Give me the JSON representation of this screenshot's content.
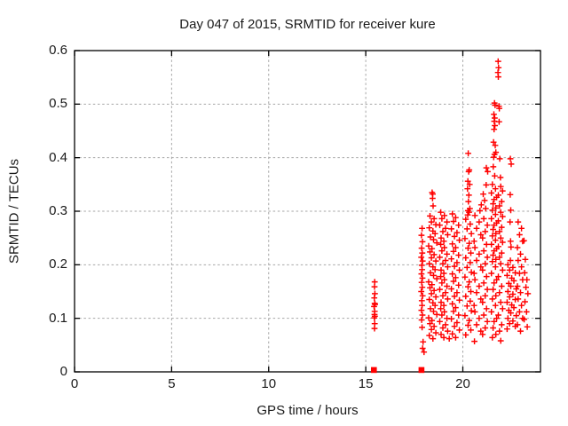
{
  "title": "Day 047 of 2015, SRMTID for receiver kure",
  "chart_data": {
    "type": "scatter",
    "title": "Day 047 of 2015, SRMTID for receiver kure",
    "xlabel": "GPS time / hours",
    "ylabel": "SRMTID / TECUs",
    "xlim": [
      0,
      24
    ],
    "ylim": [
      0,
      0.6
    ],
    "xticks": [
      0,
      5,
      10,
      15,
      20
    ],
    "yticks": [
      0,
      0.1,
      0.2,
      0.3,
      0.4,
      0.5,
      0.6
    ],
    "xtick_labels": [
      "0",
      "5",
      "10",
      "15",
      "20"
    ],
    "ytick_labels": [
      "0",
      "0.1",
      "0.2",
      "0.3",
      "0.4",
      "0.5",
      "0.6"
    ],
    "grid": true,
    "legend": "none",
    "marker": "plus",
    "marker_color": "#ff0000",
    "grid_color": "#a6a6a6",
    "background_color": "#ffffff",
    "zero_clusters_x": [
      15.42,
      17.87
    ],
    "points": [
      [
        15.46,
        0.168
      ],
      [
        15.45,
        0.159
      ],
      [
        15.47,
        0.146
      ],
      [
        15.44,
        0.138
      ],
      [
        15.46,
        0.128
      ],
      [
        15.48,
        0.126
      ],
      [
        15.43,
        0.122
      ],
      [
        15.46,
        0.113
      ],
      [
        15.45,
        0.107
      ],
      [
        15.47,
        0.104
      ],
      [
        15.44,
        0.101
      ],
      [
        15.46,
        0.09
      ],
      [
        15.45,
        0.081
      ],
      [
        17.9,
        0.268
      ],
      [
        17.87,
        0.255
      ],
      [
        17.92,
        0.243
      ],
      [
        17.88,
        0.231
      ],
      [
        17.91,
        0.222
      ],
      [
        17.86,
        0.214
      ],
      [
        17.93,
        0.207
      ],
      [
        17.89,
        0.199
      ],
      [
        17.9,
        0.191
      ],
      [
        17.87,
        0.183
      ],
      [
        17.92,
        0.175
      ],
      [
        17.88,
        0.167
      ],
      [
        17.91,
        0.158
      ],
      [
        17.86,
        0.15
      ],
      [
        17.93,
        0.142
      ],
      [
        17.89,
        0.133
      ],
      [
        17.9,
        0.124
      ],
      [
        17.87,
        0.115
      ],
      [
        17.92,
        0.106
      ],
      [
        17.88,
        0.097
      ],
      [
        17.9,
        0.083
      ],
      [
        17.95,
        0.056
      ],
      [
        17.93,
        0.044
      ],
      [
        18.0,
        0.037
      ],
      [
        18.42,
        0.335
      ],
      [
        18.45,
        0.332
      ],
      [
        18.44,
        0.324
      ],
      [
        18.47,
        0.31
      ],
      [
        18.31,
        0.291
      ],
      [
        18.52,
        0.286
      ],
      [
        18.38,
        0.28
      ],
      [
        18.61,
        0.275
      ],
      [
        18.27,
        0.269
      ],
      [
        18.46,
        0.263
      ],
      [
        18.57,
        0.258
      ],
      [
        18.33,
        0.252
      ],
      [
        18.49,
        0.247
      ],
      [
        18.66,
        0.241
      ],
      [
        18.24,
        0.235
      ],
      [
        18.41,
        0.23
      ],
      [
        18.31,
        0.224
      ],
      [
        18.52,
        0.219
      ],
      [
        18.38,
        0.213
      ],
      [
        18.61,
        0.207
      ],
      [
        18.27,
        0.202
      ],
      [
        18.46,
        0.196
      ],
      [
        18.57,
        0.191
      ],
      [
        18.33,
        0.185
      ],
      [
        18.49,
        0.18
      ],
      [
        18.66,
        0.174
      ],
      [
        18.24,
        0.168
      ],
      [
        18.41,
        0.163
      ],
      [
        18.31,
        0.157
      ],
      [
        18.52,
        0.152
      ],
      [
        18.38,
        0.146
      ],
      [
        18.61,
        0.14
      ],
      [
        18.27,
        0.135
      ],
      [
        18.46,
        0.129
      ],
      [
        18.57,
        0.124
      ],
      [
        18.33,
        0.118
      ],
      [
        18.49,
        0.113
      ],
      [
        18.66,
        0.107
      ],
      [
        18.24,
        0.101
      ],
      [
        18.41,
        0.096
      ],
      [
        18.31,
        0.09
      ],
      [
        18.52,
        0.085
      ],
      [
        18.38,
        0.079
      ],
      [
        18.61,
        0.073
      ],
      [
        18.27,
        0.068
      ],
      [
        18.46,
        0.062
      ],
      [
        18.86,
        0.298
      ],
      [
        19.05,
        0.292
      ],
      [
        18.92,
        0.286
      ],
      [
        19.18,
        0.28
      ],
      [
        18.81,
        0.274
      ],
      [
        19.11,
        0.268
      ],
      [
        18.97,
        0.262
      ],
      [
        19.22,
        0.256
      ],
      [
        18.88,
        0.25
      ],
      [
        19.02,
        0.244
      ],
      [
        18.86,
        0.238
      ],
      [
        19.05,
        0.232
      ],
      [
        18.92,
        0.226
      ],
      [
        19.18,
        0.22
      ],
      [
        18.81,
        0.214
      ],
      [
        19.11,
        0.208
      ],
      [
        18.97,
        0.202
      ],
      [
        19.22,
        0.196
      ],
      [
        18.88,
        0.19
      ],
      [
        19.02,
        0.184
      ],
      [
        18.86,
        0.178
      ],
      [
        19.05,
        0.172
      ],
      [
        18.92,
        0.166
      ],
      [
        19.18,
        0.16
      ],
      [
        18.81,
        0.154
      ],
      [
        19.11,
        0.148
      ],
      [
        18.97,
        0.142
      ],
      [
        19.22,
        0.136
      ],
      [
        18.88,
        0.13
      ],
      [
        19.02,
        0.124
      ],
      [
        18.86,
        0.118
      ],
      [
        19.05,
        0.112
      ],
      [
        18.92,
        0.106
      ],
      [
        19.18,
        0.1
      ],
      [
        18.81,
        0.094
      ],
      [
        19.11,
        0.088
      ],
      [
        18.97,
        0.082
      ],
      [
        19.22,
        0.076
      ],
      [
        18.88,
        0.07
      ],
      [
        19.02,
        0.064
      ],
      [
        19.46,
        0.295
      ],
      [
        19.63,
        0.288
      ],
      [
        19.52,
        0.281
      ],
      [
        19.78,
        0.274
      ],
      [
        19.41,
        0.267
      ],
      [
        19.7,
        0.26
      ],
      [
        19.57,
        0.253
      ],
      [
        19.82,
        0.246
      ],
      [
        19.46,
        0.239
      ],
      [
        19.63,
        0.232
      ],
      [
        19.52,
        0.225
      ],
      [
        19.78,
        0.218
      ],
      [
        19.41,
        0.211
      ],
      [
        19.7,
        0.204
      ],
      [
        19.57,
        0.197
      ],
      [
        19.82,
        0.19
      ],
      [
        19.46,
        0.183
      ],
      [
        19.63,
        0.176
      ],
      [
        19.52,
        0.169
      ],
      [
        19.78,
        0.162
      ],
      [
        19.41,
        0.155
      ],
      [
        19.7,
        0.148
      ],
      [
        19.57,
        0.141
      ],
      [
        19.82,
        0.134
      ],
      [
        19.46,
        0.127
      ],
      [
        19.63,
        0.12
      ],
      [
        19.52,
        0.113
      ],
      [
        19.78,
        0.106
      ],
      [
        19.41,
        0.099
      ],
      [
        19.7,
        0.092
      ],
      [
        19.57,
        0.085
      ],
      [
        19.82,
        0.078
      ],
      [
        19.46,
        0.071
      ],
      [
        19.63,
        0.064
      ],
      [
        19.3,
        0.062
      ],
      [
        20.28,
        0.408
      ],
      [
        20.33,
        0.377
      ],
      [
        20.3,
        0.374
      ],
      [
        20.26,
        0.356
      ],
      [
        20.35,
        0.35
      ],
      [
        20.24,
        0.342
      ],
      [
        20.31,
        0.33
      ],
      [
        20.29,
        0.318
      ],
      [
        20.36,
        0.305
      ],
      [
        20.27,
        0.301
      ],
      [
        20.32,
        0.298
      ],
      [
        20.25,
        0.293
      ],
      [
        20.15,
        0.285
      ],
      [
        20.38,
        0.276
      ],
      [
        20.22,
        0.267
      ],
      [
        20.44,
        0.258
      ],
      [
        20.11,
        0.249
      ],
      [
        20.33,
        0.24
      ],
      [
        20.27,
        0.231
      ],
      [
        20.41,
        0.222
      ],
      [
        20.15,
        0.213
      ],
      [
        20.38,
        0.204
      ],
      [
        20.22,
        0.195
      ],
      [
        20.44,
        0.186
      ],
      [
        20.11,
        0.177
      ],
      [
        20.33,
        0.168
      ],
      [
        20.27,
        0.159
      ],
      [
        20.41,
        0.15
      ],
      [
        20.15,
        0.141
      ],
      [
        20.38,
        0.132
      ],
      [
        20.22,
        0.123
      ],
      [
        20.44,
        0.114
      ],
      [
        20.11,
        0.105
      ],
      [
        20.33,
        0.096
      ],
      [
        20.27,
        0.087
      ],
      [
        20.41,
        0.078
      ],
      [
        20.15,
        0.069
      ],
      [
        20.6,
        0.057
      ],
      [
        21.2,
        0.349
      ],
      [
        21.21,
        0.381
      ],
      [
        21.28,
        0.374
      ],
      [
        21.05,
        0.332
      ],
      [
        21.12,
        0.32
      ],
      [
        20.95,
        0.312
      ],
      [
        21.18,
        0.305
      ],
      [
        20.88,
        0.301
      ],
      [
        20.62,
        0.292
      ],
      [
        21.08,
        0.286
      ],
      [
        20.84,
        0.28
      ],
      [
        21.26,
        0.274
      ],
      [
        20.71,
        0.268
      ],
      [
        21.15,
        0.262
      ],
      [
        20.93,
        0.256
      ],
      [
        21.02,
        0.25
      ],
      [
        20.58,
        0.244
      ],
      [
        21.22,
        0.238
      ],
      [
        20.62,
        0.232
      ],
      [
        21.08,
        0.226
      ],
      [
        20.84,
        0.22
      ],
      [
        21.26,
        0.214
      ],
      [
        20.71,
        0.208
      ],
      [
        21.15,
        0.202
      ],
      [
        20.93,
        0.196
      ],
      [
        21.02,
        0.19
      ],
      [
        20.58,
        0.184
      ],
      [
        21.22,
        0.178
      ],
      [
        20.62,
        0.172
      ],
      [
        21.08,
        0.166
      ],
      [
        20.84,
        0.16
      ],
      [
        21.26,
        0.154
      ],
      [
        20.71,
        0.148
      ],
      [
        21.15,
        0.142
      ],
      [
        20.93,
        0.136
      ],
      [
        21.02,
        0.13
      ],
      [
        20.58,
        0.124
      ],
      [
        21.22,
        0.118
      ],
      [
        20.62,
        0.112
      ],
      [
        21.08,
        0.106
      ],
      [
        20.84,
        0.1
      ],
      [
        21.26,
        0.094
      ],
      [
        20.71,
        0.088
      ],
      [
        21.15,
        0.082
      ],
      [
        20.93,
        0.076
      ],
      [
        21.02,
        0.07
      ],
      [
        21.82,
        0.58
      ],
      [
        21.84,
        0.568
      ],
      [
        21.81,
        0.559
      ],
      [
        21.83,
        0.551
      ],
      [
        21.63,
        0.502
      ],
      [
        21.66,
        0.498
      ],
      [
        21.86,
        0.496
      ],
      [
        21.88,
        0.492
      ],
      [
        21.6,
        0.481
      ],
      [
        21.64,
        0.474
      ],
      [
        21.62,
        0.468
      ],
      [
        21.87,
        0.467
      ],
      [
        21.65,
        0.46
      ],
      [
        21.61,
        0.453
      ],
      [
        21.58,
        0.429
      ],
      [
        21.67,
        0.423
      ],
      [
        21.7,
        0.41
      ],
      [
        21.63,
        0.406
      ],
      [
        21.59,
        0.401
      ],
      [
        21.9,
        0.398
      ],
      [
        21.57,
        0.383
      ],
      [
        21.64,
        0.366
      ],
      [
        21.94,
        0.363
      ],
      [
        21.52,
        0.35
      ],
      [
        21.95,
        0.346
      ],
      [
        21.68,
        0.342
      ],
      [
        22.05,
        0.338
      ],
      [
        21.47,
        0.334
      ],
      [
        21.83,
        0.33
      ],
      [
        21.74,
        0.326
      ],
      [
        21.61,
        0.322
      ],
      [
        22.0,
        0.318
      ],
      [
        21.56,
        0.314
      ],
      [
        21.89,
        0.31
      ],
      [
        21.7,
        0.306
      ],
      [
        21.52,
        0.302
      ],
      [
        21.95,
        0.298
      ],
      [
        21.68,
        0.294
      ],
      [
        22.05,
        0.29
      ],
      [
        21.47,
        0.286
      ],
      [
        21.83,
        0.282
      ],
      [
        21.74,
        0.278
      ],
      [
        21.61,
        0.274
      ],
      [
        22.0,
        0.27
      ],
      [
        21.56,
        0.266
      ],
      [
        21.89,
        0.262
      ],
      [
        21.7,
        0.258
      ],
      [
        21.52,
        0.254
      ],
      [
        21.95,
        0.25
      ],
      [
        21.68,
        0.246
      ],
      [
        22.05,
        0.242
      ],
      [
        21.47,
        0.238
      ],
      [
        21.83,
        0.234
      ],
      [
        21.74,
        0.23
      ],
      [
        21.61,
        0.226
      ],
      [
        22.0,
        0.222
      ],
      [
        21.56,
        0.218
      ],
      [
        21.89,
        0.214
      ],
      [
        21.7,
        0.21
      ],
      [
        21.52,
        0.206
      ],
      [
        21.95,
        0.202
      ],
      [
        21.68,
        0.196
      ],
      [
        22.05,
        0.19
      ],
      [
        21.47,
        0.184
      ],
      [
        21.83,
        0.178
      ],
      [
        21.74,
        0.172
      ],
      [
        21.61,
        0.166
      ],
      [
        22.0,
        0.16
      ],
      [
        21.56,
        0.154
      ],
      [
        21.89,
        0.148
      ],
      [
        21.7,
        0.142
      ],
      [
        21.52,
        0.136
      ],
      [
        21.95,
        0.13
      ],
      [
        21.68,
        0.124
      ],
      [
        22.05,
        0.118
      ],
      [
        21.47,
        0.112
      ],
      [
        21.83,
        0.106
      ],
      [
        21.74,
        0.1
      ],
      [
        21.61,
        0.094
      ],
      [
        22.0,
        0.088
      ],
      [
        21.56,
        0.082
      ],
      [
        21.89,
        0.076
      ],
      [
        21.7,
        0.07
      ],
      [
        21.52,
        0.064
      ],
      [
        21.95,
        0.058
      ],
      [
        22.45,
        0.398
      ],
      [
        22.49,
        0.388
      ],
      [
        22.44,
        0.331
      ],
      [
        22.47,
        0.302
      ],
      [
        22.43,
        0.28
      ],
      [
        22.46,
        0.244
      ],
      [
        22.48,
        0.233
      ],
      [
        22.45,
        0.208
      ],
      [
        22.32,
        0.2
      ],
      [
        22.58,
        0.195
      ],
      [
        22.41,
        0.19
      ],
      [
        22.7,
        0.185
      ],
      [
        22.28,
        0.18
      ],
      [
        22.52,
        0.175
      ],
      [
        22.63,
        0.17
      ],
      [
        22.37,
        0.165
      ],
      [
        22.47,
        0.16
      ],
      [
        22.75,
        0.155
      ],
      [
        22.32,
        0.15
      ],
      [
        22.58,
        0.145
      ],
      [
        22.41,
        0.14
      ],
      [
        22.7,
        0.135
      ],
      [
        22.28,
        0.13
      ],
      [
        22.52,
        0.125
      ],
      [
        22.63,
        0.12
      ],
      [
        22.37,
        0.115
      ],
      [
        22.47,
        0.11
      ],
      [
        22.75,
        0.105
      ],
      [
        22.32,
        0.1
      ],
      [
        22.58,
        0.095
      ],
      [
        22.41,
        0.09
      ],
      [
        22.7,
        0.085
      ],
      [
        22.28,
        0.08
      ],
      [
        22.85,
        0.28
      ],
      [
        23.02,
        0.268
      ],
      [
        22.92,
        0.256
      ],
      [
        23.08,
        0.244
      ],
      [
        22.81,
        0.232
      ],
      [
        22.97,
        0.22
      ],
      [
        22.85,
        0.208
      ],
      [
        23.02,
        0.196
      ],
      [
        22.92,
        0.184
      ],
      [
        23.08,
        0.172
      ],
      [
        22.81,
        0.16
      ],
      [
        22.97,
        0.148
      ],
      [
        22.85,
        0.136
      ],
      [
        23.02,
        0.124
      ],
      [
        22.92,
        0.112
      ],
      [
        23.08,
        0.1
      ],
      [
        22.81,
        0.088
      ],
      [
        22.97,
        0.076
      ],
      [
        23.15,
        0.245
      ],
      [
        23.22,
        0.21
      ],
      [
        23.18,
        0.185
      ],
      [
        23.3,
        0.172
      ],
      [
        23.25,
        0.158
      ],
      [
        23.35,
        0.146
      ],
      [
        23.2,
        0.131
      ],
      [
        23.28,
        0.112
      ],
      [
        23.16,
        0.098
      ],
      [
        23.32,
        0.084
      ]
    ]
  }
}
